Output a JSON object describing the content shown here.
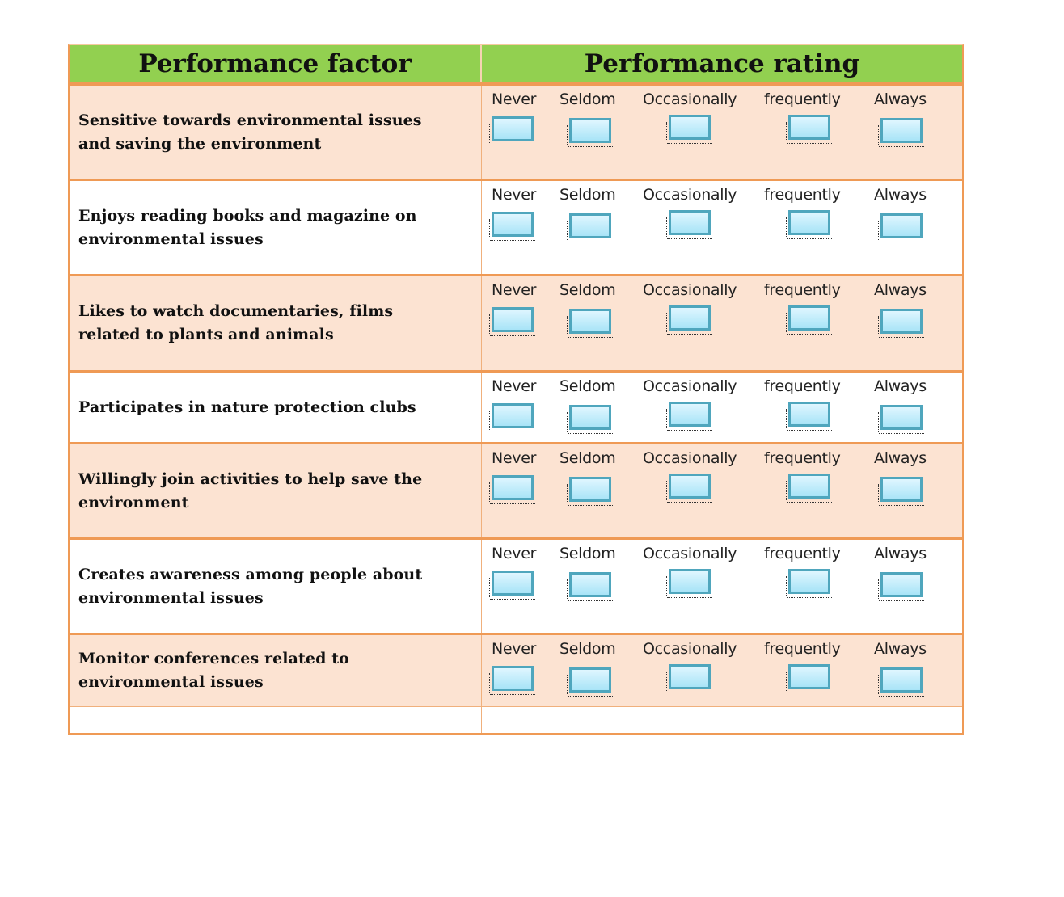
{
  "table": {
    "header": {
      "factor": "Performance factor",
      "rating": "Performance rating"
    },
    "colors": {
      "header_bg": "#92d050",
      "border": "#ef9a55",
      "shaded_row": "#fce3d2",
      "checkbox_border": "#4fa6bd",
      "checkbox_fill": "#c5effb"
    },
    "rating_options": [
      "Never",
      "Seldom",
      "Occasionally",
      "frequently",
      "Always"
    ],
    "rows": [
      {
        "factor": "Sensitive towards environmental issues and saving the environment"
      },
      {
        "factor": "Enjoys reading books and magazine on environmental issues"
      },
      {
        "factor": "Likes  to watch documentaries, films related to plants and animals"
      },
      {
        "factor": "Participates in nature protection clubs"
      },
      {
        "factor": "Willingly join activities to help save the environment"
      },
      {
        "factor": "Creates awareness among people about environmental issues"
      },
      {
        "factor": "Monitor conferences related to environmental issues"
      }
    ]
  }
}
